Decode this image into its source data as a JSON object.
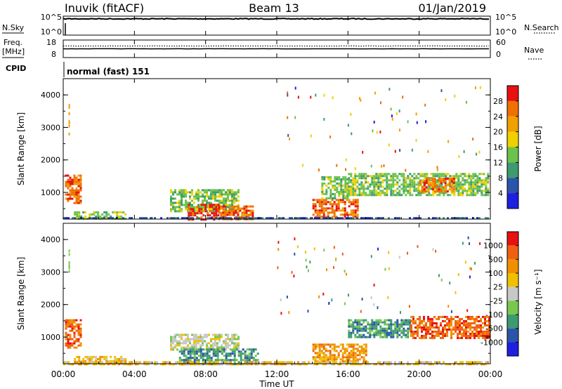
{
  "header": {
    "site": "Inuvik (fitACF)",
    "beam": "Beam 13",
    "date": "01/Jan/2019"
  },
  "colors": {
    "foreground": "#000000",
    "background": "#ffffff",
    "power_scale": [
      "#1f1fe0",
      "#2a55a8",
      "#3e9a70",
      "#6cc24a",
      "#f0d000",
      "#f0a000",
      "#f07000",
      "#e81010"
    ],
    "velocity_scale": [
      "#e81010",
      "#f06010",
      "#f09000",
      "#f0c000",
      "#c8c8c8",
      "#78c850",
      "#3e9a70",
      "#2a55a8",
      "#1f1fe0"
    ]
  },
  "chart_data": [
    {
      "type": "line",
      "panel": "nsky-nsearch",
      "labels": {
        "left": "N.Sky",
        "right": "N.Search"
      },
      "left_ticks": [
        "10^5",
        "10^0"
      ],
      "right_ticks": [
        "10^5",
        "10^0"
      ],
      "series": [
        {
          "name": "N.Sky",
          "style": "solid",
          "level": 0.86
        },
        {
          "name": "N.Search",
          "style": "dotted",
          "level": 0.86
        }
      ]
    },
    {
      "type": "line",
      "panel": "freq-nave",
      "labels": {
        "left_top": "Freq.",
        "left_bottom": "[MHz]",
        "right": "Nave"
      },
      "left_ticks": [
        "18",
        "8"
      ],
      "right_ticks": [
        "60",
        "0"
      ],
      "series": [
        {
          "name": "Freq.",
          "style": "solid",
          "level": 0.5
        },
        {
          "name": "Nave",
          "style": "dotted",
          "level": 0.66
        }
      ]
    },
    {
      "type": "text",
      "panel": "cpid",
      "label": "CPID",
      "value": "normal (fast) 151"
    },
    {
      "type": "heatmap",
      "panel": "power",
      "ylabel": "Slant Range [km]",
      "yticks": [
        "4000",
        "3000",
        "2000",
        "1000"
      ],
      "ylim": [
        180,
        4500
      ],
      "colorbar_label": "Power [dB]",
      "colorbar_ticks": [
        "28",
        "24",
        "20",
        "16",
        "12",
        "8",
        "4"
      ],
      "regions": [
        {
          "t0": 0.1,
          "t1": 1.0,
          "r0": 650,
          "r1": 1550,
          "color": 6
        },
        {
          "t0": 0.6,
          "t1": 3.5,
          "r0": 180,
          "r1": 420,
          "color": 3
        },
        {
          "t0": 6.0,
          "t1": 9.8,
          "r0": 450,
          "r1": 1100,
          "color": 3
        },
        {
          "t0": 7.0,
          "t1": 8.7,
          "r0": 180,
          "r1": 650,
          "color": 7
        },
        {
          "t0": 8.7,
          "t1": 10.7,
          "r0": 200,
          "r1": 600,
          "color": 6
        },
        {
          "t0": 14.0,
          "t1": 16.5,
          "r0": 250,
          "r1": 800,
          "color": 6
        },
        {
          "t0": 14.5,
          "t1": 16.0,
          "r0": 800,
          "r1": 1500,
          "color": 3
        },
        {
          "t0": 16.0,
          "t1": 23.9,
          "r0": 950,
          "r1": 1600,
          "color": 3
        },
        {
          "t0": 20.0,
          "t1": 22.0,
          "r0": 1000,
          "r1": 1450,
          "color": 6
        },
        {
          "t0": 0.0,
          "t1": 24.0,
          "r0": 180,
          "r1": 240,
          "color": 1
        }
      ]
    },
    {
      "type": "heatmap",
      "panel": "velocity",
      "xlabel": "Time UT",
      "xticks": [
        "00:00",
        "04:00",
        "08:00",
        "12:00",
        "16:00",
        "20:00",
        "00:00"
      ],
      "xlim": [
        0,
        24
      ],
      "ylabel": "Slant Range [km]",
      "yticks": [
        "4000",
        "3000",
        "2000",
        "1000"
      ],
      "ylim": [
        180,
        4500
      ],
      "colorbar_label": "Velocity [m s⁻¹]",
      "colorbar_ticks": [
        "1000",
        "500",
        "100",
        "25",
        "-25",
        "-100",
        "-500",
        "-1000"
      ],
      "regions": [
        {
          "t0": 0.1,
          "t1": 1.0,
          "r0": 650,
          "r1": 1550,
          "color": 1
        },
        {
          "t0": 0.6,
          "t1": 3.5,
          "r0": 180,
          "r1": 420,
          "color": 3
        },
        {
          "t0": 6.0,
          "t1": 9.8,
          "r0": 600,
          "r1": 1100,
          "color": 4
        },
        {
          "t0": 6.5,
          "t1": 11.0,
          "r0": 180,
          "r1": 650,
          "color": 6
        },
        {
          "t0": 14.0,
          "t1": 17.0,
          "r0": 250,
          "r1": 800,
          "color": 2
        },
        {
          "t0": 16.0,
          "t1": 19.5,
          "r0": 1000,
          "r1": 1550,
          "color": 6
        },
        {
          "t0": 19.5,
          "t1": 23.9,
          "r0": 1000,
          "r1": 1650,
          "color": 1
        },
        {
          "t0": 0.0,
          "t1": 24.0,
          "r0": 180,
          "r1": 260,
          "color": 3
        }
      ]
    }
  ]
}
